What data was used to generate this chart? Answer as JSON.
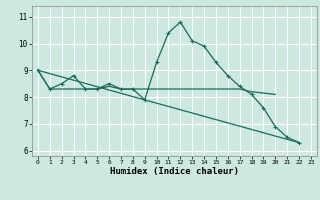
{
  "xlabel": "Humidex (Indice chaleur)",
  "background_color": "#cce8e0",
  "grid_color": "#ffffff",
  "line_color": "#1a6b5a",
  "xlim": [
    -0.5,
    23.5
  ],
  "ylim": [
    5.8,
    11.4
  ],
  "yticks": [
    6,
    7,
    8,
    9,
    10,
    11
  ],
  "xticks": [
    0,
    1,
    2,
    3,
    4,
    5,
    6,
    7,
    8,
    9,
    10,
    11,
    12,
    13,
    14,
    15,
    16,
    17,
    18,
    19,
    20,
    21,
    22,
    23
  ],
  "line1_x": [
    0,
    1,
    2,
    3,
    4,
    5,
    6,
    7,
    8,
    9,
    10,
    11,
    12,
    13,
    14,
    15,
    16,
    17,
    18,
    19,
    20,
    21,
    22
  ],
  "line1_y": [
    9.0,
    8.3,
    8.5,
    8.8,
    8.3,
    8.3,
    8.5,
    8.3,
    8.3,
    7.9,
    9.3,
    10.4,
    10.8,
    10.1,
    9.9,
    9.3,
    8.8,
    8.4,
    8.1,
    7.6,
    6.9,
    6.5,
    6.3
  ],
  "line2_x": [
    0,
    1,
    2,
    3,
    4,
    5,
    6,
    7,
    8,
    9,
    10,
    11,
    12,
    13,
    14,
    15,
    16,
    17,
    18,
    19,
    20
  ],
  "line2_y": [
    9.0,
    8.3,
    8.3,
    8.3,
    8.3,
    8.3,
    8.4,
    8.3,
    8.3,
    8.3,
    8.3,
    8.3,
    8.3,
    8.3,
    8.3,
    8.3,
    8.3,
    8.3,
    8.2,
    8.15,
    8.1
  ],
  "line3_x": [
    0,
    22
  ],
  "line3_y": [
    9.0,
    6.3
  ]
}
